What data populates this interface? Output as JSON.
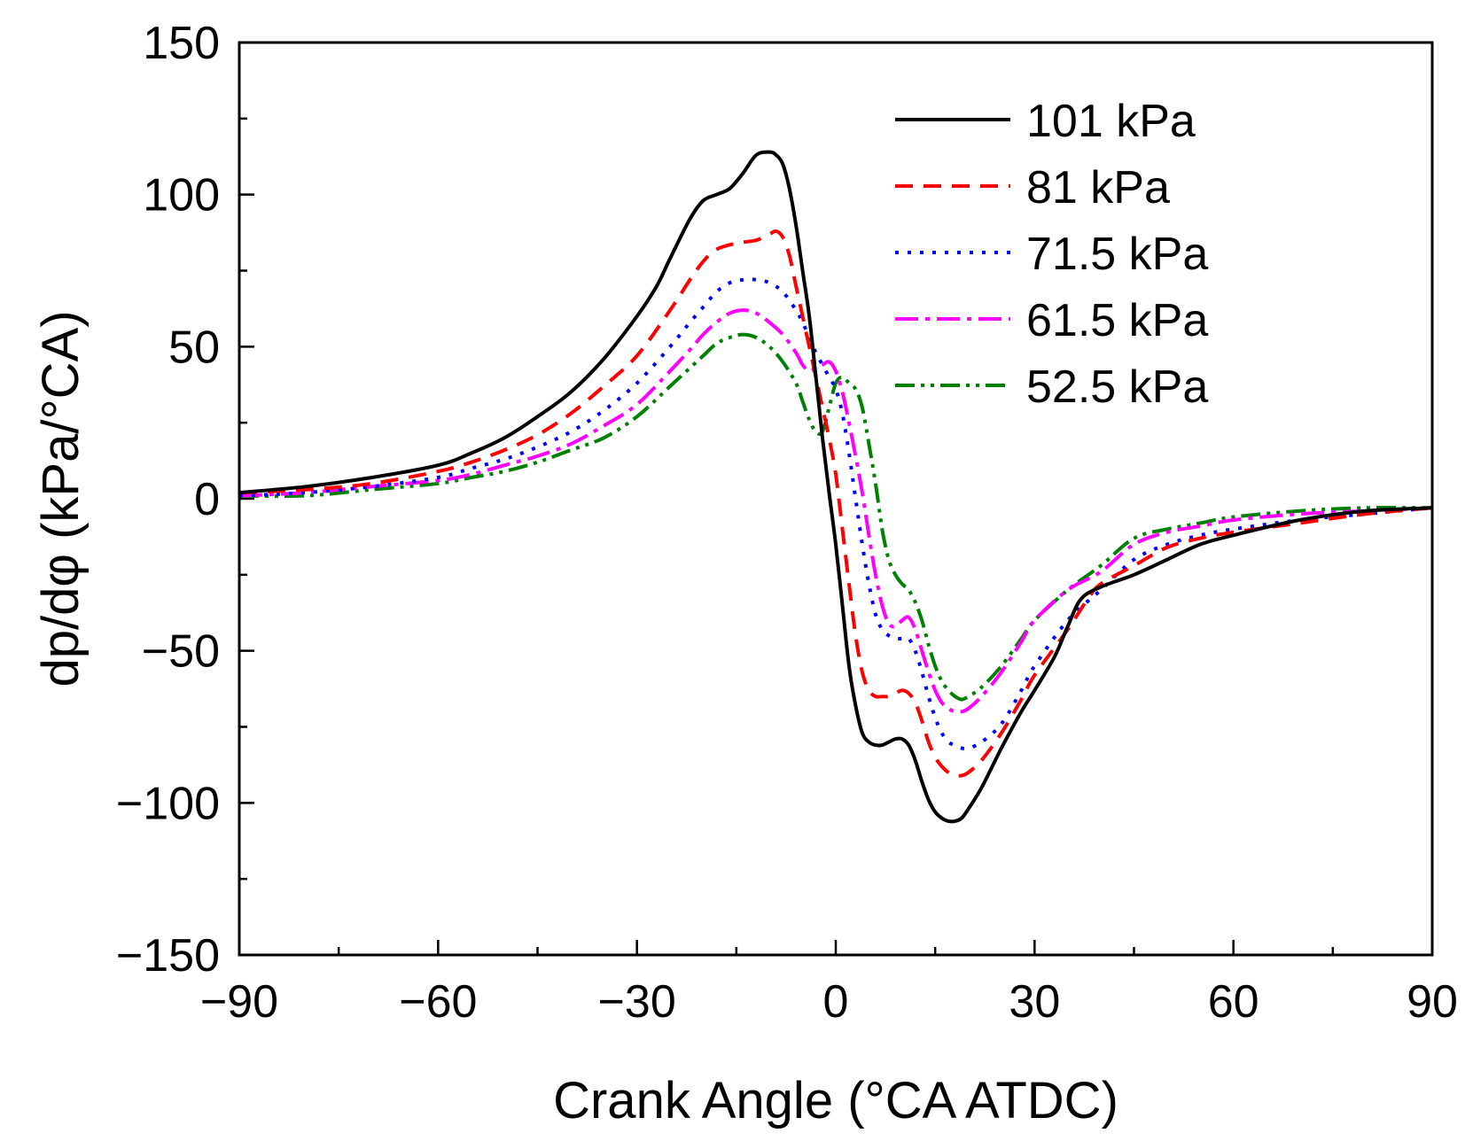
{
  "chart_data": {
    "type": "line",
    "title": "",
    "xlabel": "Crank Angle (°CA ATDC)",
    "ylabel": "dp/dφ (kPa/°CA)",
    "xlim": [
      -90,
      90
    ],
    "ylim": [
      -150,
      150
    ],
    "xticks": [
      -90,
      -60,
      -30,
      0,
      30,
      60,
      90
    ],
    "yticks": [
      -150,
      -100,
      -50,
      0,
      50,
      100,
      150
    ],
    "xtick_labels": [
      "−90",
      "−60",
      "−30",
      "0",
      "30",
      "60",
      "90"
    ],
    "ytick_labels": [
      "−150",
      "−100",
      "−50",
      "0",
      "50",
      "100",
      "150"
    ],
    "x_minor_step": 15,
    "y_minor_step": 25,
    "grid": false,
    "legend_position": "top-right",
    "series": [
      {
        "name": "101 kPa",
        "color": "#000000",
        "dash": "solid",
        "x": [
          -90,
          -80,
          -70,
          -60,
          -55,
          -50,
          -45,
          -40,
          -35,
          -30,
          -27,
          -25,
          -22,
          -20,
          -18,
          -16,
          -14,
          -12,
          -10,
          -9,
          -8,
          -7,
          -6,
          -5,
          -4,
          -3,
          -2,
          -1,
          0,
          1,
          2,
          3,
          4,
          5,
          6,
          7,
          8,
          9,
          10,
          11,
          12,
          13,
          14,
          15,
          16,
          17,
          18,
          19,
          20,
          22,
          25,
          28,
          30,
          33,
          35,
          37,
          40,
          45,
          50,
          55,
          60,
          70,
          80,
          90
        ],
        "y": [
          2,
          4,
          7,
          11,
          15,
          20,
          27,
          35,
          46,
          60,
          70,
          79,
          92,
          98,
          100,
          102,
          107,
          113,
          114,
          113,
          110,
          102,
          90,
          75,
          60,
          40,
          20,
          2,
          -15,
          -35,
          -55,
          -68,
          -77,
          -80,
          -81,
          -81,
          -80,
          -79,
          -79,
          -81,
          -86,
          -93,
          -99,
          -103,
          -105,
          -106,
          -106,
          -105,
          -102,
          -95,
          -82,
          -70,
          -63,
          -52,
          -42,
          -33,
          -29,
          -25,
          -20,
          -15,
          -12,
          -7,
          -4,
          -3
        ]
      },
      {
        "name": "81 kPa",
        "color": "#ff0000",
        "dash": "20,12",
        "x": [
          -90,
          -80,
          -70,
          -60,
          -55,
          -50,
          -45,
          -40,
          -35,
          -30,
          -25,
          -22,
          -20,
          -18,
          -15,
          -12,
          -10,
          -9,
          -8,
          -7,
          -6,
          -5,
          -4,
          -3,
          -2,
          -1,
          0,
          1,
          2,
          3,
          4,
          5,
          6,
          7,
          8,
          9,
          10,
          11,
          12,
          13,
          14,
          15,
          16,
          17,
          18,
          19,
          20,
          22,
          25,
          28,
          30,
          35,
          38,
          40,
          45,
          50,
          55,
          60,
          70,
          80,
          90
        ],
        "y": [
          2,
          3,
          5,
          9,
          12,
          16,
          21,
          28,
          37,
          47,
          62,
          72,
          78,
          82,
          84,
          85,
          87,
          88,
          86,
          80,
          70,
          60,
          50,
          40,
          30,
          20,
          8,
          -10,
          -28,
          -45,
          -57,
          -63,
          -65,
          -65,
          -65,
          -64,
          -63,
          -64,
          -67,
          -73,
          -80,
          -85,
          -88,
          -90,
          -91,
          -91,
          -90,
          -86,
          -77,
          -66,
          -58,
          -43,
          -33,
          -28,
          -22,
          -16,
          -13,
          -11,
          -8,
          -5,
          -3
        ]
      },
      {
        "name": "71.5 kPa",
        "color": "#0000ff",
        "dash": "4,10",
        "x": [
          -90,
          -80,
          -70,
          -60,
          -55,
          -50,
          -45,
          -40,
          -35,
          -30,
          -25,
          -22,
          -20,
          -18,
          -16,
          -14,
          -12,
          -10,
          -8,
          -6,
          -5,
          -4,
          -3,
          -2,
          -1,
          0,
          1,
          2,
          3,
          4,
          5,
          6,
          7,
          8,
          9,
          10,
          11,
          12,
          13,
          14,
          15,
          16,
          17,
          18,
          19,
          20,
          22,
          25,
          28,
          30,
          35,
          40,
          45,
          50,
          55,
          60,
          70,
          80,
          90
        ],
        "y": [
          1,
          2,
          4,
          7,
          10,
          13,
          17,
          22,
          29,
          38,
          50,
          58,
          63,
          68,
          71,
          72,
          72,
          71,
          68,
          62,
          58,
          53,
          48,
          44,
          40,
          36,
          28,
          15,
          0,
          -15,
          -28,
          -38,
          -43,
          -45,
          -46,
          -46,
          -46,
          -50,
          -57,
          -65,
          -72,
          -77,
          -80,
          -81,
          -82,
          -82,
          -80,
          -74,
          -63,
          -55,
          -40,
          -30,
          -20,
          -15,
          -12,
          -10,
          -7,
          -5,
          -3
        ]
      },
      {
        "name": "61.5 kPa",
        "color": "#ff00ff",
        "dash": "26,8,5,8",
        "x": [
          -90,
          -80,
          -70,
          -60,
          -55,
          -50,
          -45,
          -40,
          -35,
          -30,
          -25,
          -22,
          -20,
          -18,
          -16,
          -14,
          -12,
          -10,
          -8,
          -6,
          -5,
          -4,
          -3,
          -2,
          -1,
          0,
          1,
          2,
          3,
          4,
          5,
          6,
          7,
          8,
          9,
          10,
          11,
          12,
          13,
          14,
          15,
          16,
          17,
          18,
          19,
          20,
          22,
          25,
          28,
          30,
          35,
          40,
          45,
          50,
          55,
          60,
          70,
          80,
          90
        ],
        "y": [
          1,
          2,
          4,
          6,
          8,
          11,
          14,
          18,
          24,
          31,
          42,
          49,
          54,
          58,
          61,
          62,
          61,
          58,
          54,
          48,
          44,
          42,
          43,
          44,
          45,
          42,
          35,
          25,
          14,
          2,
          -12,
          -25,
          -35,
          -41,
          -42,
          -40,
          -39,
          -43,
          -50,
          -57,
          -63,
          -67,
          -69,
          -70,
          -70,
          -69,
          -65,
          -57,
          -47,
          -40,
          -30,
          -24,
          -15,
          -11,
          -9,
          -7,
          -5,
          -4,
          -3
        ]
      },
      {
        "name": "52.5 kPa",
        "color": "#008000",
        "dash": "22,7,4,7,4,7",
        "x": [
          -90,
          -80,
          -70,
          -60,
          -55,
          -50,
          -45,
          -40,
          -35,
          -30,
          -25,
          -22,
          -20,
          -18,
          -16,
          -14,
          -12,
          -10,
          -8,
          -6,
          -5,
          -4,
          -3,
          -2,
          -1,
          0,
          1,
          2,
          3,
          4,
          5,
          6,
          7,
          8,
          9,
          10,
          11,
          12,
          13,
          14,
          15,
          16,
          17,
          18,
          19,
          20,
          22,
          25,
          28,
          30,
          35,
          40,
          45,
          50,
          55,
          60,
          70,
          80,
          90
        ],
        "y": [
          1,
          1,
          3,
          5,
          7,
          9,
          12,
          16,
          20,
          27,
          37,
          43,
          47,
          51,
          53,
          54,
          53,
          50,
          45,
          38,
          32,
          26,
          22,
          22,
          30,
          38,
          40,
          38,
          36,
          30,
          18,
          5,
          -10,
          -20,
          -25,
          -28,
          -30,
          -34,
          -40,
          -48,
          -55,
          -60,
          -63,
          -65,
          -66,
          -65,
          -62,
          -55,
          -46,
          -40,
          -30,
          -22,
          -13,
          -10,
          -8,
          -6,
          -4,
          -3,
          -3
        ]
      }
    ]
  }
}
